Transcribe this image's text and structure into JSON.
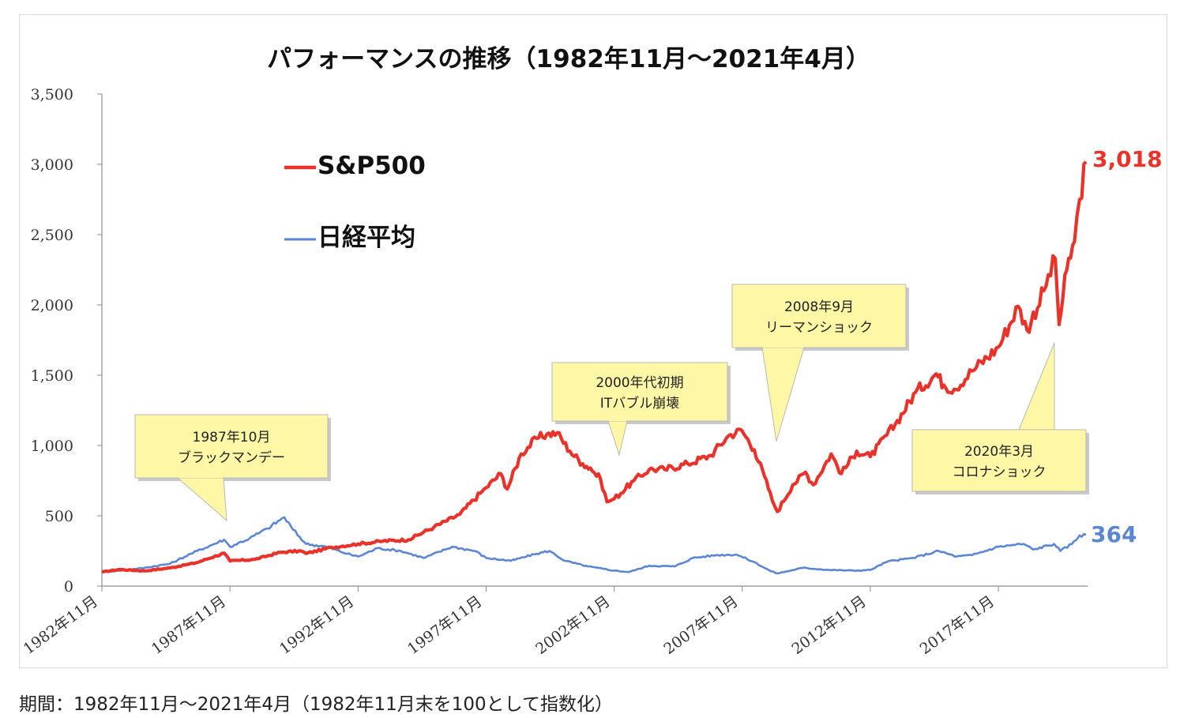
{
  "caption": "期間：1982年11月〜2021年4月（1982年11月末を100として指数化）",
  "chart_data": {
    "type": "line",
    "title": "パフォーマンスの推移（1982年11月〜2021年4月）",
    "xlabel": "",
    "ylabel": "",
    "x_range": [
      1982.83,
      2021.25
    ],
    "ylim": [
      0,
      3500
    ],
    "y_ticks": [
      "0",
      "500",
      "1,000",
      "1,500",
      "2,000",
      "2,500",
      "3,000",
      "3,500"
    ],
    "y_tick_values": [
      0,
      500,
      1000,
      1500,
      2000,
      2500,
      3000,
      3500
    ],
    "x_ticks": [
      "1982年11月",
      "1987年11月",
      "1992年11月",
      "1997年11月",
      "2002年11月",
      "2007年11月",
      "2012年11月",
      "2017年11月"
    ],
    "x_tick_values": [
      1982.83,
      1987.83,
      1992.83,
      1997.83,
      2002.83,
      2007.83,
      2012.83,
      2017.83
    ],
    "grid": false,
    "legend_position": "top-left",
    "series": [
      {
        "name": "S&P500",
        "color": "#e8322a",
        "end_label": "3,018",
        "points": [
          [
            1982.83,
            100
          ],
          [
            1983.5,
            118
          ],
          [
            1984.5,
            108
          ],
          [
            1985.5,
            130
          ],
          [
            1986.5,
            165
          ],
          [
            1987.6,
            235
          ],
          [
            1987.83,
            178
          ],
          [
            1988.8,
            190
          ],
          [
            1989.8,
            240
          ],
          [
            1990.6,
            250
          ],
          [
            1990.8,
            232
          ],
          [
            1991.8,
            275
          ],
          [
            1992.83,
            300
          ],
          [
            1993.8,
            320
          ],
          [
            1994.8,
            330
          ],
          [
            1995.8,
            420
          ],
          [
            1996.8,
            510
          ],
          [
            1997.6,
            660
          ],
          [
            1997.83,
            700
          ],
          [
            1998.4,
            800
          ],
          [
            1998.65,
            690
          ],
          [
            1999.2,
            940
          ],
          [
            1999.8,
            1050
          ],
          [
            2000.2,
            1080
          ],
          [
            2000.6,
            1090
          ],
          [
            2001.1,
            960
          ],
          [
            2001.6,
            870
          ],
          [
            2001.9,
            840
          ],
          [
            2002.3,
            760
          ],
          [
            2002.55,
            600
          ],
          [
            2002.83,
            620
          ],
          [
            2003.6,
            750
          ],
          [
            2004.2,
            830
          ],
          [
            2004.8,
            830
          ],
          [
            2005.7,
            870
          ],
          [
            2006.6,
            930
          ],
          [
            2007.3,
            1070
          ],
          [
            2007.8,
            1110
          ],
          [
            2008.3,
            970
          ],
          [
            2008.7,
            780
          ],
          [
            2009.0,
            610
          ],
          [
            2009.2,
            530
          ],
          [
            2009.8,
            720
          ],
          [
            2010.3,
            810
          ],
          [
            2010.6,
            720
          ],
          [
            2011.3,
            940
          ],
          [
            2011.7,
            800
          ],
          [
            2012.3,
            960
          ],
          [
            2012.83,
            920
          ],
          [
            2013.8,
            1150
          ],
          [
            2014.6,
            1380
          ],
          [
            2015.4,
            1510
          ],
          [
            2015.7,
            1430
          ],
          [
            2016.1,
            1400
          ],
          [
            2016.8,
            1530
          ],
          [
            2017.83,
            1700
          ],
          [
            2018.6,
            1990
          ],
          [
            2018.95,
            1820
          ],
          [
            2019.6,
            2100
          ],
          [
            2020.05,
            2330
          ],
          [
            2020.2,
            1860
          ],
          [
            2020.5,
            2250
          ],
          [
            2020.8,
            2450
          ],
          [
            2021.0,
            2750
          ],
          [
            2021.25,
            3018
          ]
        ]
      },
      {
        "name": "日経平均",
        "color": "#5b86d4",
        "end_label": "364",
        "points": [
          [
            1982.83,
            100
          ],
          [
            1983.5,
            110
          ],
          [
            1984.5,
            130
          ],
          [
            1985.5,
            160
          ],
          [
            1986.3,
            230
          ],
          [
            1987.6,
            330
          ],
          [
            1987.83,
            280
          ],
          [
            1988.6,
            340
          ],
          [
            1989.3,
            410
          ],
          [
            1989.95,
            490
          ],
          [
            1990.3,
            400
          ],
          [
            1990.8,
            300
          ],
          [
            1991.6,
            280
          ],
          [
            1992.4,
            230
          ],
          [
            1992.83,
            210
          ],
          [
            1993.6,
            270
          ],
          [
            1994.5,
            250
          ],
          [
            1995.4,
            200
          ],
          [
            1996.5,
            280
          ],
          [
            1997.4,
            250
          ],
          [
            1997.83,
            200
          ],
          [
            1998.8,
            180
          ],
          [
            1999.8,
            230
          ],
          [
            2000.3,
            250
          ],
          [
            2000.9,
            180
          ],
          [
            2001.8,
            140
          ],
          [
            2002.83,
            110
          ],
          [
            2003.4,
            100
          ],
          [
            2004.2,
            145
          ],
          [
            2005.2,
            140
          ],
          [
            2005.9,
            200
          ],
          [
            2006.8,
            220
          ],
          [
            2007.6,
            225
          ],
          [
            2008.3,
            170
          ],
          [
            2008.9,
            110
          ],
          [
            2009.2,
            90
          ],
          [
            2010.2,
            130
          ],
          [
            2011.2,
            115
          ],
          [
            2012.3,
            110
          ],
          [
            2012.83,
            115
          ],
          [
            2013.5,
            175
          ],
          [
            2014.5,
            200
          ],
          [
            2015.5,
            250
          ],
          [
            2016.2,
            210
          ],
          [
            2016.8,
            220
          ],
          [
            2017.83,
            280
          ],
          [
            2018.8,
            300
          ],
          [
            2019.2,
            260
          ],
          [
            2020.0,
            300
          ],
          [
            2020.25,
            250
          ],
          [
            2020.7,
            300
          ],
          [
            2021.0,
            360
          ],
          [
            2021.25,
            364
          ]
        ]
      }
    ],
    "annotations": [
      {
        "lines": [
          "1987年10月",
          "ブラックマンデー"
        ]
      },
      {
        "lines": [
          "2000年代初期",
          "ITバブル崩壊"
        ]
      },
      {
        "lines": [
          "2008年9月",
          "リーマンショック"
        ]
      },
      {
        "lines": [
          "2020年3月",
          "コロナショック"
        ]
      }
    ]
  }
}
